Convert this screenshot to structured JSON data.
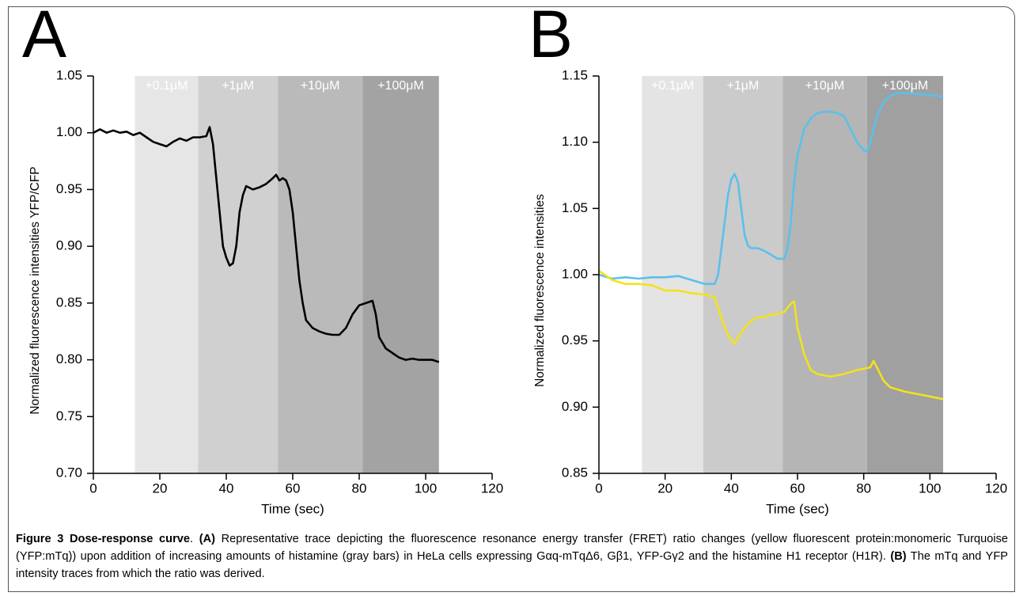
{
  "chart_data": [
    {
      "type": "line",
      "panel_label": "A",
      "xlabel": "Time (sec)",
      "ylabel": "Normalized fluorescence intensities YFP/CFP",
      "xlim": [
        0,
        120
      ],
      "xticks": [
        0,
        20,
        40,
        60,
        80,
        100,
        120
      ],
      "ylim": [
        0.7,
        1.05
      ],
      "yticks": [
        {
          "value": 0.7,
          "label": "0.70"
        },
        0.75,
        {
          "value": 0.8,
          "label": "0.80"
        },
        0.85,
        {
          "value": 0.9,
          "label": "0.90"
        },
        0.95,
        {
          "value": 1.0,
          "label": "1.00"
        },
        1.05
      ],
      "shaded_regions": [
        {
          "label": "+0.1μM",
          "x": [
            12.5,
            31.5
          ],
          "color": "#e6e6e6"
        },
        {
          "label": "+1μM",
          "x": [
            31.5,
            55.5
          ],
          "color": "#d0d0d0"
        },
        {
          "label": "+10μM",
          "x": [
            55.5,
            81
          ],
          "color": "#bababa"
        },
        {
          "label": "+100μM",
          "x": [
            81,
            104
          ],
          "color": "#a3a3a3"
        }
      ],
      "series": [
        {
          "color": "#000000",
          "x": [
            0,
            2,
            4,
            6,
            8,
            10,
            12,
            14,
            16,
            18,
            20,
            22,
            24,
            26,
            28,
            30,
            32,
            34,
            35,
            36,
            37,
            38,
            39,
            40,
            41,
            42,
            43,
            44,
            45,
            46,
            48,
            50,
            52,
            54,
            55,
            56,
            57,
            58,
            59,
            60,
            61,
            62,
            63,
            64,
            66,
            68,
            70,
            72,
            74,
            76,
            78,
            80,
            82,
            84,
            85,
            86,
            88,
            90,
            92,
            94,
            96,
            98,
            100,
            102,
            104
          ],
          "values": [
            1.0,
            1.003,
            1.0,
            1.002,
            1.0,
            1.001,
            0.998,
            1.0,
            0.996,
            0.992,
            0.99,
            0.988,
            0.992,
            0.995,
            0.993,
            0.996,
            0.996,
            0.997,
            1.005,
            0.99,
            0.96,
            0.93,
            0.9,
            0.89,
            0.883,
            0.885,
            0.9,
            0.93,
            0.945,
            0.953,
            0.95,
            0.952,
            0.955,
            0.96,
            0.963,
            0.958,
            0.96,
            0.958,
            0.95,
            0.93,
            0.9,
            0.87,
            0.85,
            0.835,
            0.828,
            0.825,
            0.823,
            0.822,
            0.822,
            0.828,
            0.84,
            0.848,
            0.85,
            0.852,
            0.84,
            0.82,
            0.81,
            0.806,
            0.802,
            0.8,
            0.801,
            0.8,
            0.8,
            0.8,
            0.798
          ]
        }
      ]
    },
    {
      "type": "line",
      "panel_label": "B",
      "xlabel": "Time (sec)",
      "ylabel": "Normalized fluorescence intensities",
      "xlim": [
        0,
        120
      ],
      "xticks": [
        0,
        20,
        40,
        60,
        80,
        100,
        120
      ],
      "ylim": [
        0.85,
        1.15
      ],
      "yticks": [
        0.85,
        {
          "value": 0.9,
          "label": "0.90"
        },
        0.95,
        {
          "value": 1.0,
          "label": "1.00"
        },
        1.05,
        {
          "value": 1.1,
          "label": "1.10"
        },
        1.15
      ],
      "shaded_regions": [
        {
          "label": "+0.1μM",
          "x": [
            13,
            31.5
          ],
          "color": "#e4e4e4"
        },
        {
          "label": "+1μM",
          "x": [
            31.5,
            55.5
          ],
          "color": "#cbcbcb"
        },
        {
          "label": "+10μM",
          "x": [
            55.5,
            81
          ],
          "color": "#b5b5b5"
        },
        {
          "label": "+100μM",
          "x": [
            81,
            104
          ],
          "color": "#a0a0a0"
        }
      ],
      "series": [
        {
          "color": "#5bc0ea",
          "x": [
            0,
            4,
            8,
            12,
            16,
            20,
            24,
            28,
            32,
            35,
            36,
            37,
            38,
            39,
            40,
            41,
            42,
            43,
            44,
            45,
            46,
            48,
            50,
            52,
            54,
            56,
            57,
            58,
            59,
            60,
            61,
            62,
            64,
            66,
            68,
            70,
            72,
            74,
            76,
            78,
            80,
            81,
            82,
            84,
            86,
            88,
            90,
            94,
            98,
            102,
            104
          ],
          "values": [
            1.0,
            0.997,
            0.998,
            0.997,
            0.998,
            0.998,
            0.999,
            0.996,
            0.993,
            0.993,
            1.0,
            1.02,
            1.04,
            1.06,
            1.072,
            1.076,
            1.07,
            1.05,
            1.03,
            1.022,
            1.02,
            1.02,
            1.018,
            1.015,
            1.012,
            1.012,
            1.02,
            1.04,
            1.07,
            1.09,
            1.1,
            1.11,
            1.118,
            1.122,
            1.123,
            1.123,
            1.122,
            1.12,
            1.11,
            1.1,
            1.094,
            1.093,
            1.1,
            1.12,
            1.13,
            1.135,
            1.137,
            1.137,
            1.136,
            1.135,
            1.134
          ]
        },
        {
          "color": "#f2e21c",
          "x": [
            0,
            4,
            8,
            12,
            16,
            18,
            20,
            24,
            28,
            32,
            35,
            36,
            38,
            40,
            41,
            42,
            44,
            46,
            48,
            50,
            52,
            54,
            56,
            58,
            59,
            60,
            62,
            64,
            66,
            70,
            74,
            78,
            82,
            83,
            84,
            86,
            88,
            92,
            96,
            100,
            104
          ],
          "values": [
            1.003,
            0.996,
            0.993,
            0.993,
            0.992,
            0.99,
            0.988,
            0.988,
            0.986,
            0.985,
            0.983,
            0.975,
            0.96,
            0.95,
            0.948,
            0.952,
            0.96,
            0.965,
            0.968,
            0.968,
            0.97,
            0.97,
            0.972,
            0.978,
            0.98,
            0.96,
            0.94,
            0.928,
            0.925,
            0.923,
            0.925,
            0.928,
            0.93,
            0.935,
            0.93,
            0.92,
            0.915,
            0.912,
            0.91,
            0.908,
            0.906
          ]
        }
      ]
    }
  ],
  "caption": [
    {
      "text": "Figure 3 Dose-response curve",
      "bold": true
    },
    {
      "text": ". ",
      "bold": false
    },
    {
      "text": "(A)",
      "bold": true
    },
    {
      "text": " Representative trace depicting the fluorescence resonance energy transfer (FRET) ratio changes (yellow fluorescent protein:monomeric Turquoise (YFP:mTq)) upon addition of increasing amounts of histamine (gray bars) in HeLa cells expressing Gαq-mTqΔ6, Gβ1, YFP-Gγ2 and the histamine H1 receptor (H1R). ",
      "bold": false
    },
    {
      "text": "(B)",
      "bold": true
    },
    {
      "text": " The mTq and YFP intensity traces from which the ratio was derived.",
      "bold": false
    }
  ]
}
